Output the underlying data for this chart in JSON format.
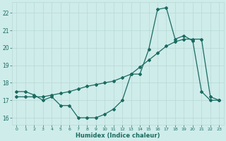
{
  "title": "",
  "xlabel": "Humidex (Indice chaleur)",
  "ylabel": "",
  "bg_color": "#ceecea",
  "grid_color": "#b8d8d5",
  "line_color": "#1a6b60",
  "xlim": [
    -0.5,
    23.5
  ],
  "ylim": [
    15.6,
    22.6
  ],
  "xticks": [
    0,
    1,
    2,
    3,
    4,
    5,
    6,
    7,
    8,
    9,
    10,
    11,
    12,
    13,
    14,
    15,
    16,
    17,
    18,
    19,
    20,
    21,
    22,
    23
  ],
  "yticks": [
    16,
    17,
    18,
    19,
    20,
    21,
    22
  ],
  "series1_x": [
    0,
    1,
    2,
    3,
    4,
    5,
    6,
    7,
    8,
    9,
    10,
    11,
    12,
    13,
    14,
    15,
    16,
    17,
    18,
    19,
    20,
    21,
    22,
    23
  ],
  "series1_y": [
    17.5,
    17.5,
    17.3,
    17.0,
    17.2,
    16.7,
    16.7,
    16.0,
    16.0,
    16.0,
    16.2,
    16.5,
    17.0,
    18.5,
    18.5,
    19.9,
    22.2,
    22.3,
    20.5,
    20.7,
    20.4,
    17.5,
    17.0,
    17.0
  ],
  "series2_x": [
    0,
    1,
    2,
    3,
    4,
    5,
    6,
    7,
    8,
    9,
    10,
    11,
    12,
    13,
    14,
    15,
    16,
    17,
    18,
    19,
    20,
    21,
    22,
    23
  ],
  "series2_y": [
    17.2,
    17.2,
    17.2,
    17.2,
    17.3,
    17.4,
    17.5,
    17.65,
    17.8,
    17.9,
    18.0,
    18.1,
    18.3,
    18.5,
    18.9,
    19.3,
    19.7,
    20.1,
    20.35,
    20.5,
    20.5,
    20.5,
    17.2,
    17.0
  ]
}
